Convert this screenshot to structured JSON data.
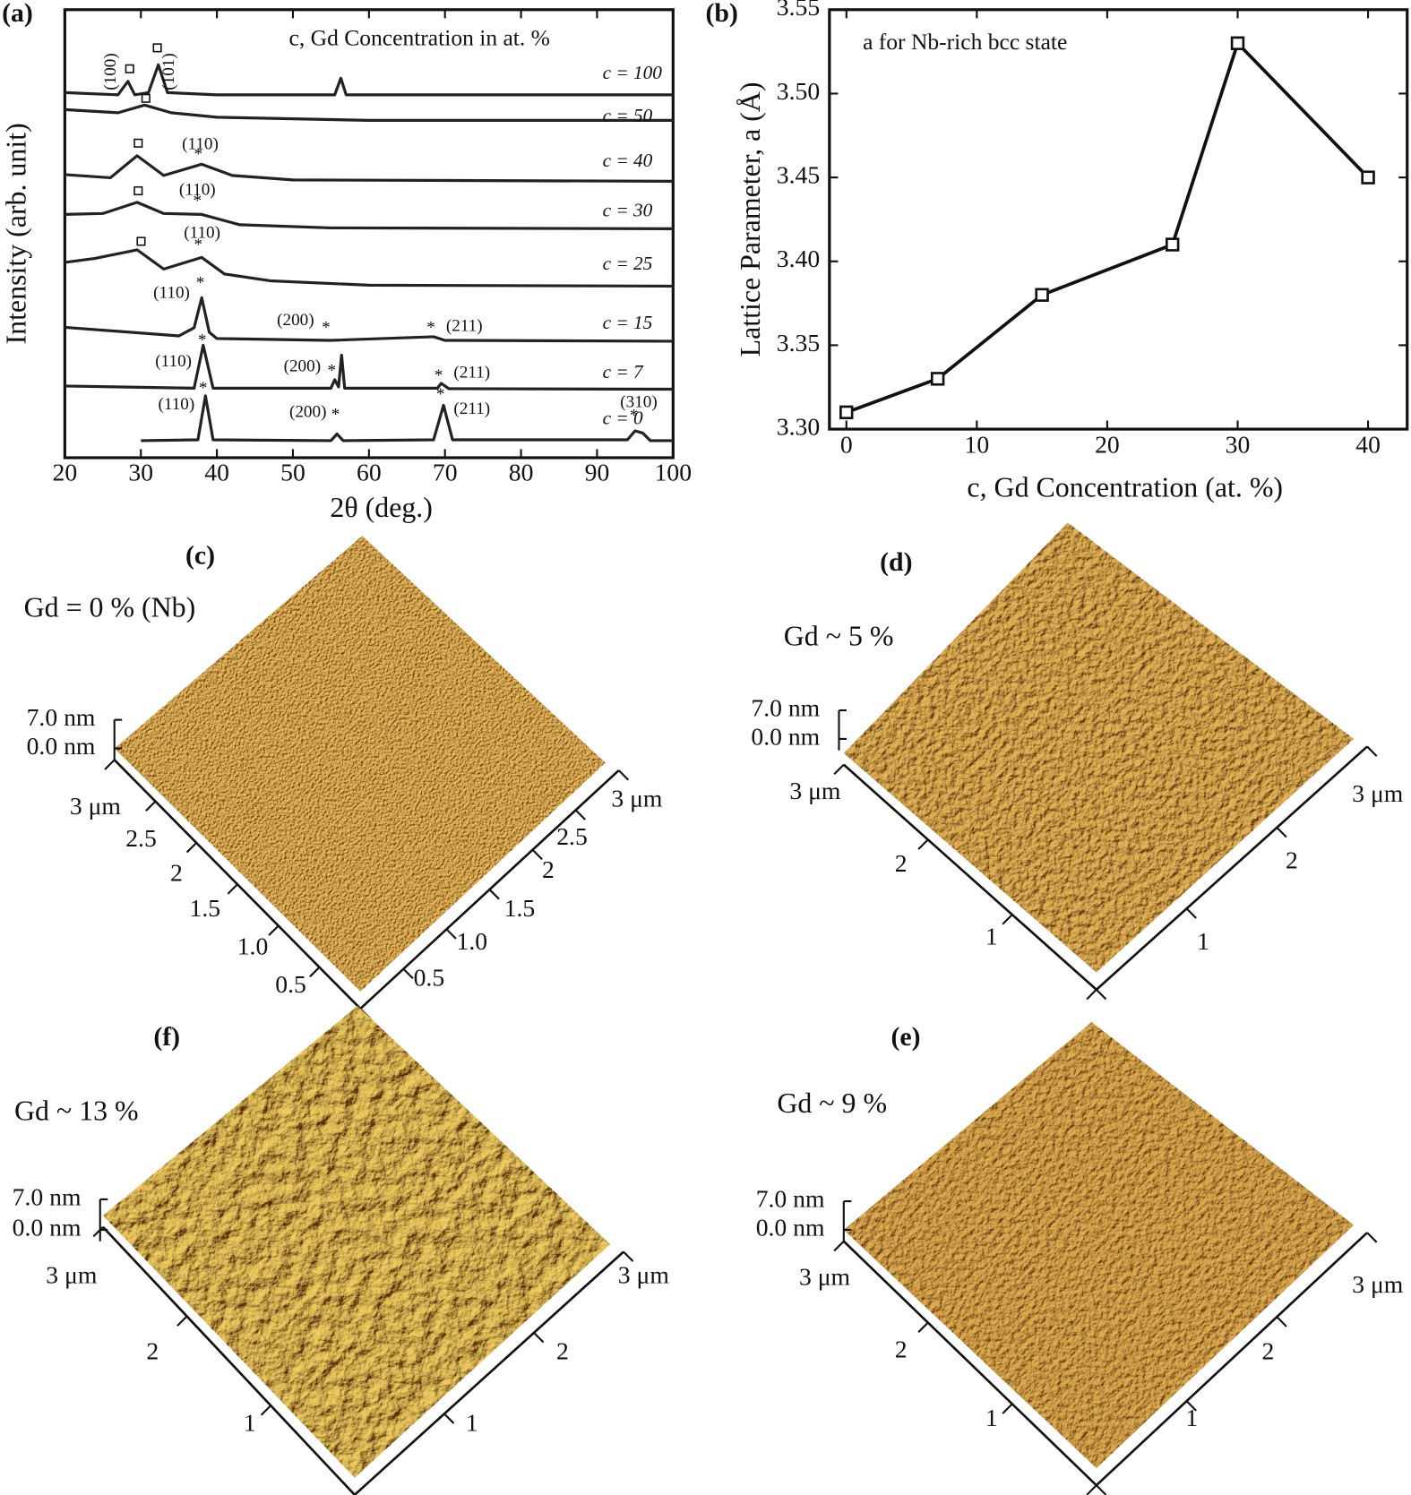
{
  "chart_data": [
    {
      "type": "line",
      "panel_label": "(a)",
      "title": "c, Gd Concentration in at. %",
      "x_label": "2θ (deg.)",
      "y_label": "Intensity (arb. unit)",
      "xlim": [
        20,
        100
      ],
      "xticks": [
        20,
        30,
        40,
        50,
        60,
        70,
        80,
        90,
        100
      ],
      "ylim": [
        0,
        100
      ],
      "series": [
        {
          "name": "c = 100",
          "color": "#222222",
          "x": [
            20,
            27,
            28.3,
            29.2,
            31,
            32.3,
            33.5,
            40,
            55.5,
            56.3,
            57,
            100
          ],
          "values": [
            81.5,
            81,
            84.0,
            81,
            81.5,
            87.7,
            81.5,
            81,
            81,
            84.7,
            81,
            81
          ]
        },
        {
          "name": "c = 50",
          "color": "#222222",
          "x": [
            20,
            27,
            30.5,
            34,
            40,
            60,
            100
          ],
          "values": [
            77.7,
            77,
            78.7,
            77,
            76,
            75.3,
            75.3
          ]
        },
        {
          "name": "c = 40",
          "color": "#222222",
          "x": [
            20,
            26,
            29.5,
            33,
            38,
            42,
            50,
            100
          ],
          "values": [
            63.2,
            62.5,
            67.4,
            63,
            65.5,
            63,
            62,
            61.7
          ]
        },
        {
          "name": "c = 30",
          "color": "#222222",
          "x": [
            20,
            25,
            29.5,
            33,
            38,
            43,
            55,
            100
          ],
          "values": [
            54.3,
            54.5,
            57.0,
            54.5,
            54.3,
            52,
            51.3,
            51.1
          ]
        },
        {
          "name": "c = 25",
          "color": "#222222",
          "x": [
            20,
            24,
            29.5,
            33,
            38,
            41,
            47,
            60,
            100
          ],
          "values": [
            43.6,
            44.5,
            46.4,
            42.1,
            44.7,
            41,
            39.5,
            38.5,
            38.3
          ]
        },
        {
          "name": "c = 15",
          "color": "#222222",
          "x": [
            20,
            35,
            37,
            38,
            39,
            40,
            55,
            68.5,
            70,
            100
          ],
          "values": [
            29.1,
            27.2,
            29,
            35.7,
            28,
            26.6,
            26.2,
            27,
            26.2,
            26.0
          ]
        },
        {
          "name": "c = 7",
          "color": "#222222",
          "x": [
            20,
            37,
            38.2,
            39.5,
            55,
            55.5,
            56,
            56.4,
            56.8,
            69,
            69.5,
            70.5,
            100
          ],
          "values": [
            16,
            15.5,
            25.1,
            15.5,
            15.5,
            17.4,
            15.8,
            22.9,
            15.5,
            15.5,
            16.6,
            15.4,
            15.3
          ]
        },
        {
          "name": "c = 0",
          "color": "#222222",
          "x": [
            30,
            37.5,
            38.5,
            39.5,
            55,
            55.8,
            56.6,
            68.5,
            69.8,
            71,
            94,
            95,
            96,
            97,
            100
          ],
          "values": [
            3.8,
            4,
            13.8,
            4,
            3.8,
            5.3,
            3.8,
            4,
            11.7,
            4,
            4,
            6.0,
            5.5,
            3.8,
            3.8
          ]
        }
      ],
      "annotations": [
        "(100)",
        "(101)",
        "(110)",
        "*",
        "(110)",
        "*",
        "(110)",
        "*",
        "(110)",
        "*",
        "(200)",
        "*",
        "*",
        "(211)",
        "(110)",
        "*",
        "(200)",
        "*",
        "*",
        "(211)",
        "(110)",
        "*",
        "(200)",
        "*",
        "*",
        "(211)",
        "(310)",
        "*"
      ]
    },
    {
      "type": "line",
      "panel_label": "(b)",
      "title": "a for Nb-rich bcc state",
      "x_label": "c, Gd Concentration (at. %)",
      "y_label": "Lattice Parameter, a (Å)",
      "x": [
        0,
        7,
        15,
        25,
        30,
        40
      ],
      "values": [
        3.31,
        3.33,
        3.38,
        3.41,
        3.53,
        3.45
      ],
      "color": "#111111",
      "marker": "square",
      "xlim": [
        -1.3,
        43
      ],
      "xticks": [
        0,
        10,
        20,
        30,
        40
      ],
      "ylim": [
        3.3,
        3.55
      ],
      "yticks": [
        {
          "value": 3.3,
          "label": "3.30"
        },
        {
          "value": 3.35,
          "label": "3.35"
        },
        {
          "value": 3.4,
          "label": "3.40"
        },
        {
          "value": 3.45,
          "label": "3.45"
        },
        {
          "value": 3.5,
          "label": "3.50"
        },
        {
          "value": 3.55,
          "label": "3.55"
        }
      ]
    }
  ],
  "afm_panels": [
    {
      "label": "(c)",
      "title": "Gd = 0 % (Nb)",
      "scale": [
        "7.0 nm",
        "0.0 nm"
      ],
      "left_ticks": [
        "3 μm",
        "2.5",
        "2",
        "1.5",
        "1.0",
        "0.5"
      ],
      "right_ticks": [
        "3 μm",
        "2.5",
        "2",
        "1.5",
        "1.0",
        "0.5"
      ]
    },
    {
      "label": "(d)",
      "title": "Gd ~ 5 %",
      "scale": [
        "7.0 nm",
        "0.0 nm"
      ],
      "left_ticks": [
        "3 μm",
        "2",
        "1"
      ],
      "right_ticks": [
        "3 μm",
        "2",
        "1"
      ]
    },
    {
      "label": "(f)",
      "title": "Gd ~ 13 %",
      "scale": [
        "7.0 nm",
        "0.0 nm"
      ],
      "left_ticks": [
        "3 μm",
        "2",
        "1"
      ],
      "right_ticks": [
        "3 μm",
        "2",
        "1"
      ]
    },
    {
      "label": "(e)",
      "title": "Gd ~ 9 %",
      "scale": [
        "7.0 nm",
        "0.0 nm"
      ],
      "left_ticks": [
        "3 μm",
        "2",
        "1"
      ],
      "right_ticks": [
        "3 μm",
        "2",
        "1"
      ]
    }
  ]
}
